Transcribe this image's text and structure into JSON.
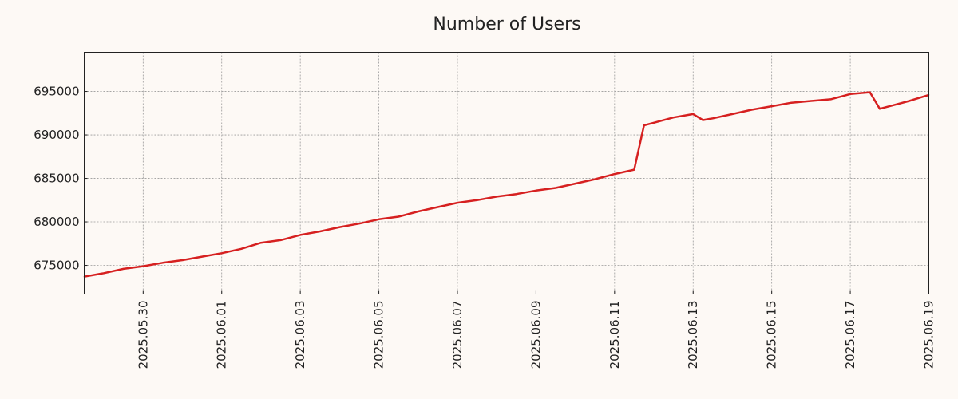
{
  "chart_data": {
    "type": "line",
    "title": "Number of Users",
    "xlabel": "",
    "ylabel": "",
    "x_range": [
      "2025-05-28T12:00",
      "2025-06-19T00:00"
    ],
    "ylim": [
      671700,
      699500
    ],
    "grid": true,
    "legend": "none",
    "colors": {
      "background": "#fdf9f5",
      "line": "#d62020"
    },
    "x_ticks": [
      "2025.05.30",
      "2025.06.01",
      "2025.06.03",
      "2025.06.05",
      "2025.06.07",
      "2025.06.09",
      "2025.06.11",
      "2025.06.13",
      "2025.06.15",
      "2025.06.17",
      "2025.06.19"
    ],
    "y_ticks": [
      "675000",
      "680000",
      "685000",
      "690000",
      "695000"
    ],
    "series": [
      {
        "x": [
          "2025-05-28T12:00",
          "2025-05-29T00:00",
          "2025-05-29T12:00",
          "2025-05-30T00:00",
          "2025-05-30T12:00",
          "2025-05-31T00:00",
          "2025-05-31T12:00",
          "2025-06-01T00:00",
          "2025-06-01T12:00",
          "2025-06-02T00:00",
          "2025-06-02T12:00",
          "2025-06-03T00:00",
          "2025-06-03T12:00",
          "2025-06-04T00:00",
          "2025-06-04T12:00",
          "2025-06-05T00:00",
          "2025-06-05T12:00",
          "2025-06-06T00:00",
          "2025-06-06T12:00",
          "2025-06-07T00:00",
          "2025-06-07T12:00",
          "2025-06-08T00:00",
          "2025-06-08T12:00",
          "2025-06-09T00:00",
          "2025-06-09T12:00",
          "2025-06-10T00:00",
          "2025-06-10T12:00",
          "2025-06-11T00:00",
          "2025-06-11T12:00",
          "2025-06-11T18:00",
          "2025-06-12T00:00",
          "2025-06-12T12:00",
          "2025-06-13T00:00",
          "2025-06-13T06:00",
          "2025-06-13T12:00",
          "2025-06-14T00:00",
          "2025-06-14T12:00",
          "2025-06-15T00:00",
          "2025-06-15T12:00",
          "2025-06-16T00:00",
          "2025-06-16T12:00",
          "2025-06-17T00:00",
          "2025-06-17T12:00",
          "2025-06-17T18:00",
          "2025-06-18T00:00",
          "2025-06-18T12:00",
          "2025-06-19T00:00"
        ],
        "y": [
          673700,
          674100,
          674600,
          674900,
          675300,
          675600,
          676000,
          676400,
          676900,
          677600,
          677900,
          678500,
          678900,
          679400,
          679800,
          680300,
          680600,
          681200,
          681700,
          682200,
          682500,
          682900,
          683200,
          683600,
          683900,
          684400,
          684900,
          685500,
          686000,
          691100,
          691400,
          692000,
          692400,
          691700,
          691900,
          692400,
          692900,
          693300,
          693700,
          693900,
          694100,
          694700,
          694900,
          693000,
          693300,
          693900,
          694600
        ]
      }
    ]
  }
}
